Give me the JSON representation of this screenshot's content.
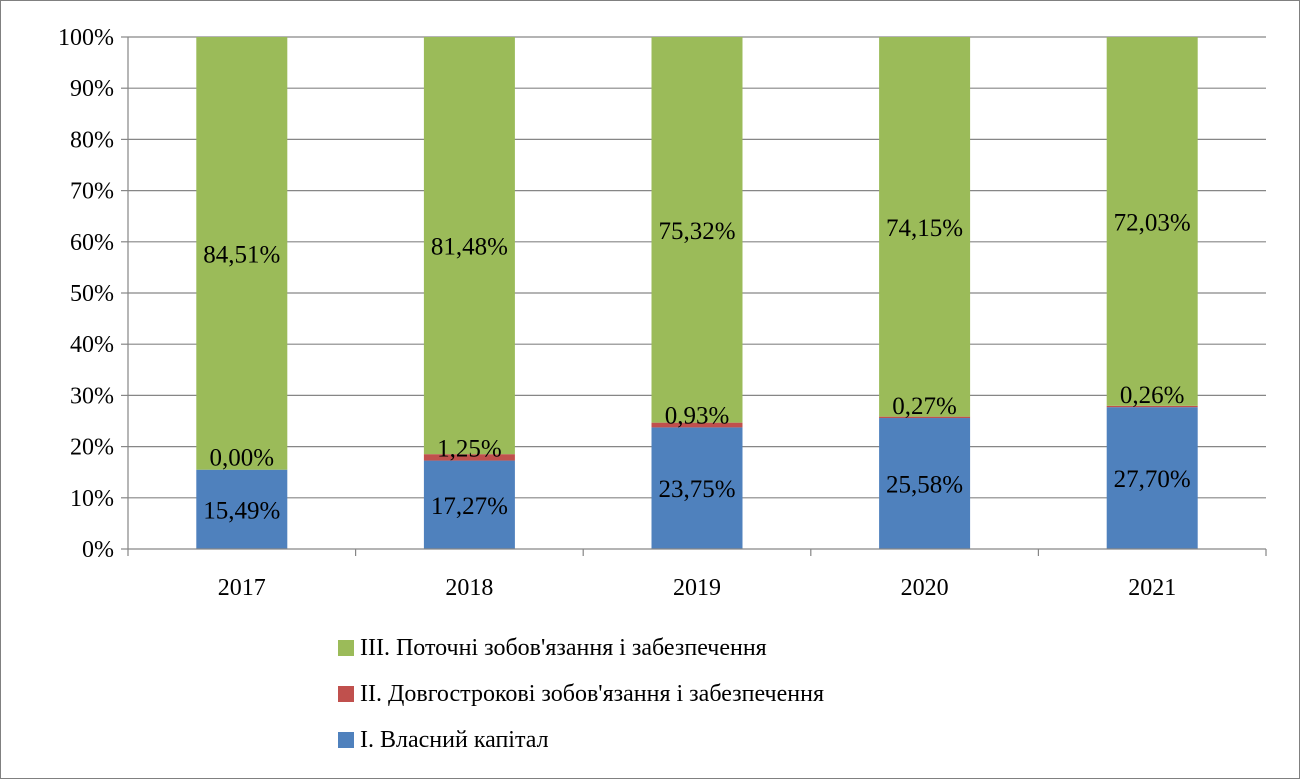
{
  "chart_data": {
    "type": "bar",
    "stacked": true,
    "percent": true,
    "categories": [
      "2017",
      "2018",
      "2019",
      "2020",
      "2021"
    ],
    "ylim": [
      0,
      100
    ],
    "yticks": [
      "0%",
      "10%",
      "20%",
      "30%",
      "40%",
      "50%",
      "60%",
      "70%",
      "80%",
      "90%",
      "100%"
    ],
    "grid": true,
    "legend_position": "bottom",
    "series": [
      {
        "name": "І. Власний капітал",
        "color": "#4f81bd",
        "values": [
          15.49,
          17.27,
          23.75,
          25.58,
          27.7
        ],
        "labels": [
          "15,49%",
          "17,27%",
          "23,75%",
          "25,58%",
          "27,70%"
        ]
      },
      {
        "name": "ІІ. Довгострокові зобов'язання і забезпечення",
        "color": "#c0504d",
        "values": [
          0.0,
          1.25,
          0.93,
          0.27,
          0.26
        ],
        "labels": [
          "0,00%",
          "1,25%",
          "0,93%",
          "0,27%",
          "0,26%"
        ]
      },
      {
        "name": "ІІІ. Поточні зобов'язання і забезпечення",
        "color": "#9bbb59",
        "values": [
          84.51,
          81.48,
          75.32,
          74.15,
          72.03
        ],
        "labels": [
          "84,51%",
          "81,48%",
          "75,32%",
          "74,15%",
          "72,03%"
        ]
      }
    ]
  },
  "legend": {
    "items": [
      {
        "label": "ІІІ. Поточні зобов'язання і забезпечення",
        "color": "#9bbb59"
      },
      {
        "label": "ІІ. Довгострокові зобов'язання і забезпечення",
        "color": "#c0504d"
      },
      {
        "label": "І. Власний капітал",
        "color": "#4f81bd"
      }
    ]
  }
}
